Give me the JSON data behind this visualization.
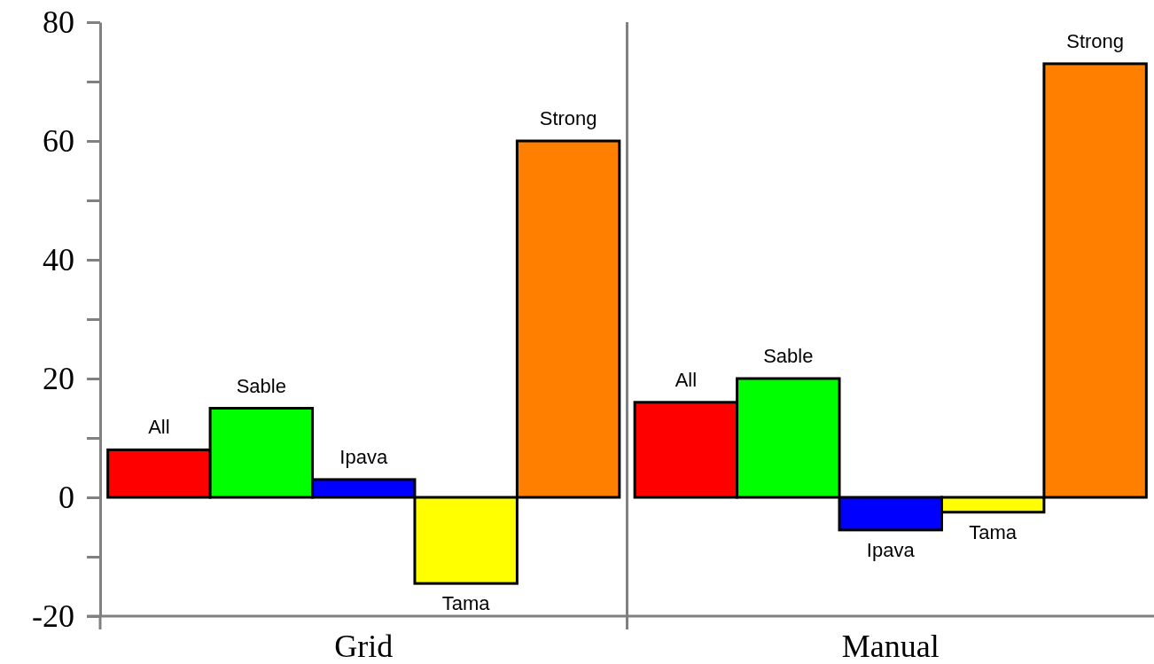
{
  "chart_data": {
    "type": "bar",
    "categories": [
      "Grid",
      "Manual"
    ],
    "series": [
      {
        "name": "All",
        "color": "#ff0000",
        "values": [
          8,
          16
        ]
      },
      {
        "name": "Sable",
        "color": "#00ff00",
        "values": [
          15,
          20
        ]
      },
      {
        "name": "Ipava",
        "color": "#0000ff",
        "values": [
          3,
          -5.5
        ]
      },
      {
        "name": "Tama",
        "color": "#ffff00",
        "values": [
          -14.5,
          -2.5
        ]
      },
      {
        "name": "Strong",
        "color": "#ff8000",
        "values": [
          60,
          73
        ]
      }
    ],
    "ylim": [
      -20,
      80
    ],
    "yticks": [
      -20,
      {
        "value": -10,
        "label": null
      },
      0,
      {
        "value": 10,
        "label": null
      },
      20,
      {
        "value": 30,
        "label": null
      },
      40,
      {
        "value": 50,
        "label": null
      },
      60,
      {
        "value": 70,
        "label": null
      },
      80
    ],
    "grid": false
  }
}
